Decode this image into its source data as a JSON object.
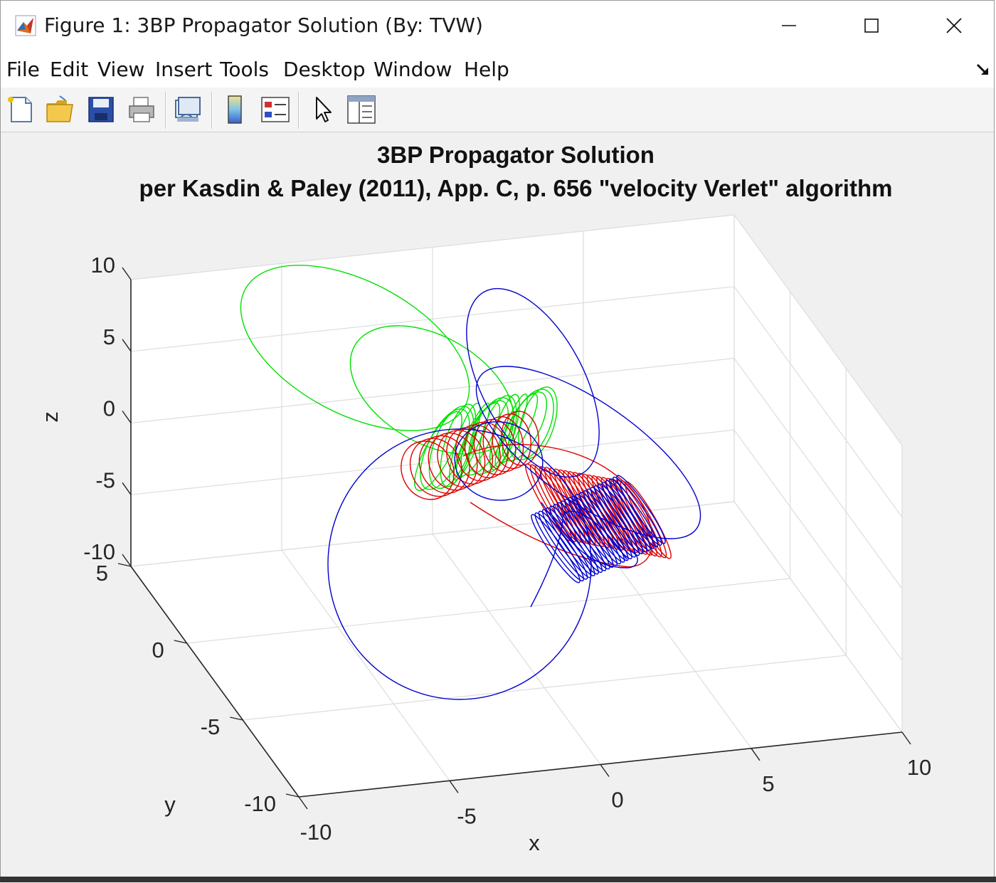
{
  "window": {
    "title": "Figure 1: 3BP Propagator Solution (By: TVW)",
    "controls": [
      "minimize",
      "maximize",
      "close"
    ]
  },
  "menubar": {
    "items": [
      "File",
      "Edit",
      "View",
      "Insert",
      "Tools",
      "Desktop",
      "Window",
      "Help"
    ]
  },
  "toolbar": {
    "buttons": [
      "new-figure",
      "open-file",
      "save",
      "print",
      "link-plot",
      "insert-colorbar",
      "insert-legend",
      "edit-plot",
      "property-inspector"
    ]
  },
  "chart_data": {
    "type": "line",
    "projection": "3d",
    "title": "3BP Propagator Solution",
    "subtitle": "per Kasdin & Paley (2011), App. C, p. 656 \"velocity Verlet\" algorithm",
    "xlabel": "x",
    "ylabel": "y",
    "zlabel": "z",
    "xlim": [
      -10,
      10
    ],
    "ylim": [
      -10,
      5
    ],
    "zlim": [
      -10,
      10
    ],
    "xticks": [
      "-10",
      "-5",
      "0",
      "5",
      "10"
    ],
    "yticks": [
      "-10",
      "-5",
      "0",
      "5"
    ],
    "zticks": [
      "-10",
      "-5",
      "0",
      "5",
      "10"
    ],
    "grid": true,
    "series_colors": {
      "body1": "#00e000",
      "body2": "#e00000",
      "body3": "#0000d0"
    }
  }
}
